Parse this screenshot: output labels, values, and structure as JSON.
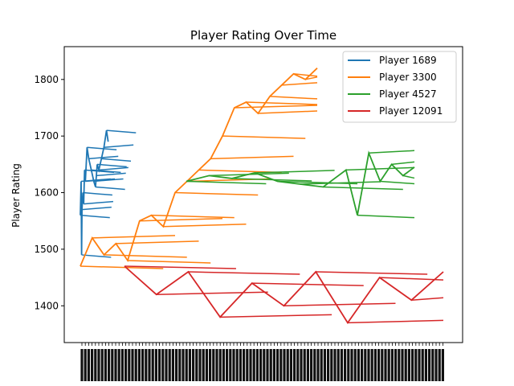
{
  "chart_data": {
    "type": "line",
    "title": "Player Rating Over Time",
    "xlabel": "",
    "ylabel": "Player Rating",
    "ylim": [
      1335,
      1858
    ],
    "yticks": [
      1400,
      1500,
      1600,
      1700,
      1800
    ],
    "legend_position": "top-right",
    "grid": false,
    "x_axis_note": "dense overlapping date tick labels (unreadable)",
    "series": [
      {
        "name": "Player 1689",
        "color": "#1f77b4",
        "x": [
          0.0,
          0.01,
          0.015,
          0.02,
          0.03,
          0.04,
          0.05,
          0.06,
          0.08,
          0.1,
          0.13,
          0.16,
          0.18,
          0.19,
          0.2,
          0.22,
          0.25,
          0.28,
          0.31,
          0.33
        ],
        "values": [
          1560,
          1620,
          1490,
          1570,
          1600,
          1580,
          1640,
          1620,
          1680,
          1660,
          1640,
          1620,
          1610,
          1630,
          1650,
          1640,
          1660,
          1680,
          1710,
          1690
        ]
      },
      {
        "name": "Player 3300",
        "color": "#ff7f0e",
        "x": [
          0.0,
          0.05,
          0.1,
          0.15,
          0.2,
          0.25,
          0.3,
          0.35,
          0.4,
          0.45,
          0.5,
          0.55,
          0.6,
          0.65,
          0.7,
          0.75,
          0.8,
          0.85,
          0.9,
          0.95,
          1.0
        ],
        "values": [
          1470,
          1520,
          1490,
          1510,
          1480,
          1550,
          1560,
          1540,
          1600,
          1620,
          1640,
          1660,
          1700,
          1750,
          1760,
          1740,
          1770,
          1790,
          1810,
          1800,
          1820
        ]
      },
      {
        "name": "Player 4527",
        "color": "#2ca02c",
        "x": [
          0.0,
          0.1,
          0.2,
          0.3,
          0.4,
          0.5,
          0.6,
          0.7,
          0.75,
          0.8,
          0.85,
          0.9,
          0.95,
          1.0
        ],
        "values": [
          1620,
          1630,
          1625,
          1635,
          1620,
          1615,
          1610,
          1640,
          1560,
          1670,
          1620,
          1650,
          1630,
          1645
        ]
      },
      {
        "name": "Player 12091",
        "color": "#d62728",
        "x": [
          0.0,
          0.1,
          0.2,
          0.3,
          0.4,
          0.5,
          0.6,
          0.7,
          0.8,
          0.9,
          1.0
        ],
        "values": [
          1470,
          1420,
          1460,
          1380,
          1440,
          1400,
          1460,
          1370,
          1450,
          1410,
          1460
        ]
      }
    ]
  }
}
